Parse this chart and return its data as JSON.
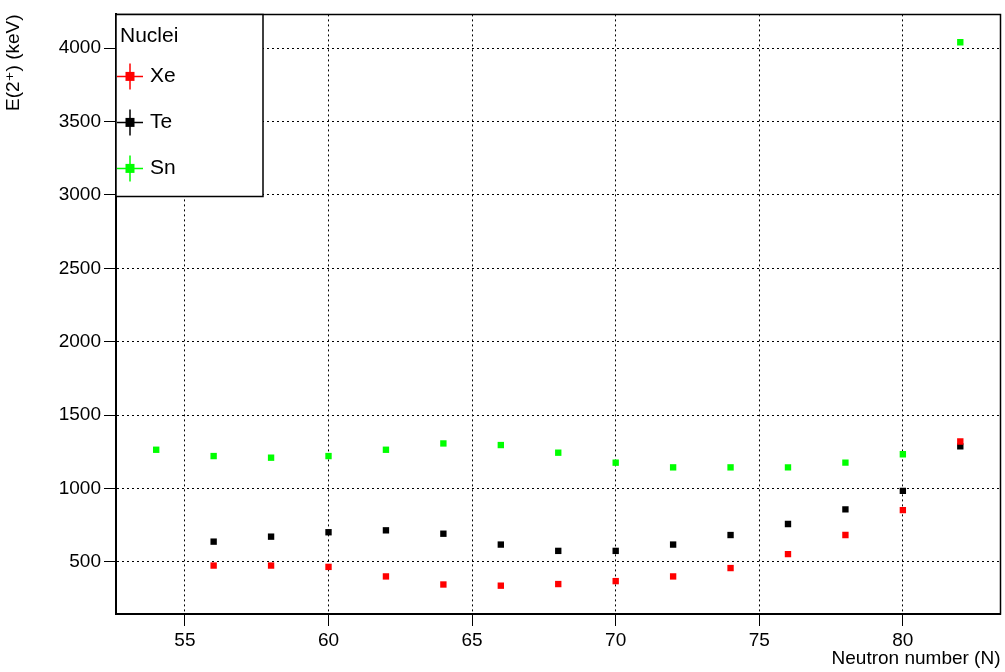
{
  "chart_data": {
    "type": "scatter",
    "xlabel": "Neutron number (N)",
    "ylabel": "E(2⁺) (keV)",
    "legend_title": "Nuclei",
    "legend": "top left",
    "grid": true,
    "marker": "square",
    "x": [
      54,
      56,
      58,
      60,
      62,
      64,
      66,
      68,
      70,
      72,
      74,
      76,
      78,
      80,
      82
    ],
    "xlim": [
      52.6,
      83.4
    ],
    "xticks": [
      55,
      60,
      65,
      70,
      75,
      80
    ],
    "ylim": [
      145,
      4230
    ],
    "yticks": [
      500,
      1000,
      1500,
      2000,
      2500,
      3000,
      3500,
      4000
    ],
    "series": [
      {
        "name": "Xe",
        "color": "#ff0000",
        "values": [
          null,
          475,
          475,
          466,
          401,
          346,
          338,
          349,
          369,
          401,
          458,
          553,
          683,
          853,
          1320
        ]
      },
      {
        "name": "Te",
        "color": "#000000",
        "values": [
          null,
          638,
          672,
          702,
          715,
          692,
          618,
          575,
          575,
          618,
          683,
          758,
          858,
          984,
          1287
        ]
      },
      {
        "name": "Sn",
        "color": "#00ff00",
        "values": [
          1264,
          1221,
          1210,
          1221,
          1264,
          1307,
          1296,
          1244,
          1176,
          1144,
          1144,
          1144,
          1176,
          1233,
          4040
        ]
      }
    ]
  }
}
